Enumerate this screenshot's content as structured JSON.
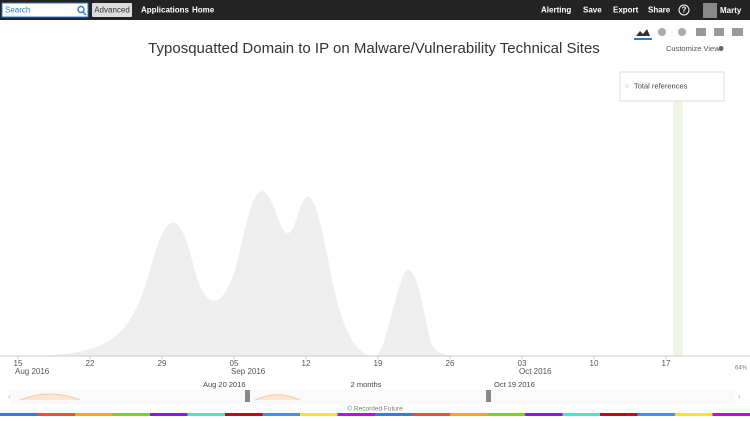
{
  "nav": {
    "search": "Search",
    "advanced": "Advanced",
    "links": [
      "Applications",
      "Home"
    ],
    "actions": [
      "Alerting",
      "Save",
      "Export",
      "Share"
    ],
    "help": "?",
    "user": "Marty"
  },
  "title": "Typosquatted Domain to IP on Malware/Vulnerability Technical Sites",
  "customize": "Customize View",
  "legend": "Total references",
  "axis": {
    "days": [
      "15",
      "22",
      "29",
      "05",
      "12",
      "19",
      "26",
      "03",
      "10",
      "17"
    ],
    "months": [
      "Aug 2016",
      "Sep 2016",
      "Oct 2016"
    ]
  },
  "timeline": {
    "start": "Aug 20 2016",
    "span": "2 months",
    "end": "Oct 19 2016",
    "zoom": "64%"
  },
  "footer": "© Recorded Future"
}
